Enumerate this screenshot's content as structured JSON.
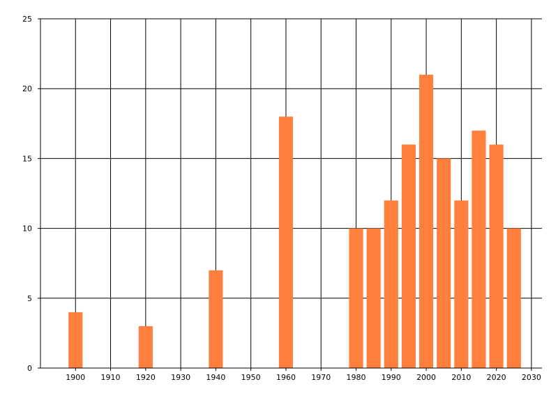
{
  "chart_data": {
    "type": "bar",
    "title": "",
    "xlabel": "",
    "ylabel": "",
    "x": [
      1900,
      1920,
      1940,
      1960,
      1980,
      1985,
      1990,
      1995,
      2000,
      2005,
      2010,
      2015,
      2020,
      2025
    ],
    "values": [
      4,
      3,
      7,
      18,
      10,
      10,
      12,
      16,
      21,
      15,
      12,
      17,
      16,
      10
    ],
    "bar_width_years": 4,
    "xlim": [
      1890,
      2033
    ],
    "ylim": [
      0,
      25
    ],
    "x_ticks": [
      "1900",
      "1910",
      "1920",
      "1930",
      "1940",
      "1950",
      "1960",
      "1970",
      "1980",
      "1990",
      "2000",
      "2010",
      "2020",
      "2030"
    ],
    "y_ticks": [
      "0",
      "5",
      "10",
      "15",
      "20",
      "25"
    ],
    "grid": true,
    "legend": "none",
    "bar_color": "#ff7f3f",
    "grid_color": "#000000"
  }
}
